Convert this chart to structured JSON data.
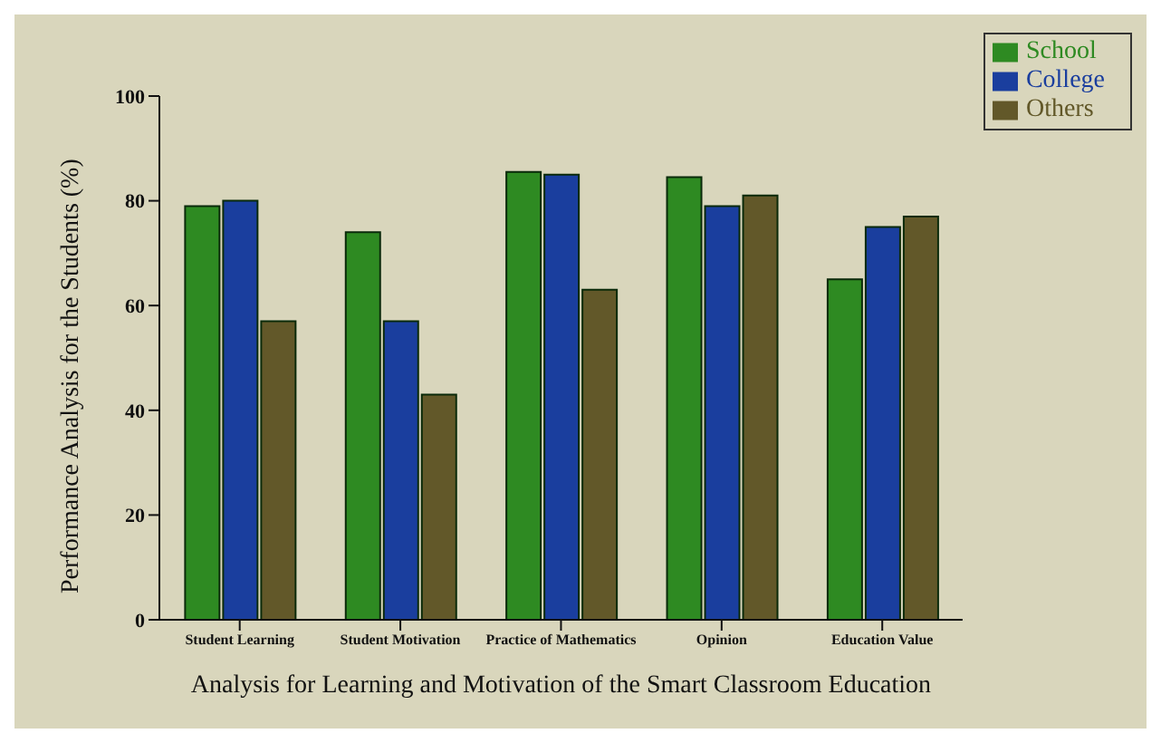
{
  "chart_data": {
    "type": "bar",
    "xlabel": "Analysis for Learning and Motivation of the Smart Classroom Education",
    "ylabel": "Performance Analysis for the Students (%)",
    "categories": [
      "Student Learning",
      "Student Motivation",
      "Practice of Mathematics",
      "Opinion",
      "Education Value"
    ],
    "series": [
      {
        "name": "School",
        "color": "#2e8a22",
        "values": [
          79,
          74,
          85.5,
          84.5,
          65
        ]
      },
      {
        "name": "College",
        "color": "#1a3e9e",
        "values": [
          80,
          57,
          85,
          79,
          75
        ]
      },
      {
        "name": "Others",
        "color": "#625829",
        "values": [
          57,
          43,
          63,
          81,
          77
        ]
      }
    ],
    "ylim": [
      0,
      100
    ],
    "yticks": [
      0,
      20,
      40,
      60,
      80,
      100
    ],
    "grid": false,
    "legend": "top right"
  }
}
